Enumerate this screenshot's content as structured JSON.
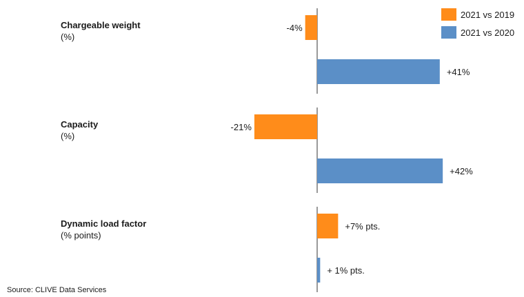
{
  "chart_data": {
    "type": "bar",
    "orientation": "horizontal",
    "groups": [
      {
        "title": "Chargeable weight",
        "unit": "(%)"
      },
      {
        "title": "Capacity",
        "unit": "(%)"
      },
      {
        "title": "Dynamic load factor",
        "unit": "(% points)"
      }
    ],
    "series": [
      {
        "name": "2021 vs 2019",
        "color": "#ff8c1a",
        "values": [
          -4,
          -21,
          7
        ],
        "labels": [
          "-4%",
          "-21%",
          "+7% pts."
        ]
      },
      {
        "name": "2021 vs 2020",
        "color": "#5b8fc7",
        "values": [
          41,
          42,
          1
        ],
        "labels": [
          "+41%",
          "+42%",
          "+ 1% pts."
        ]
      }
    ],
    "legend_position": "top-right",
    "grid": false
  },
  "source": "Source: CLIVE Data Services"
}
